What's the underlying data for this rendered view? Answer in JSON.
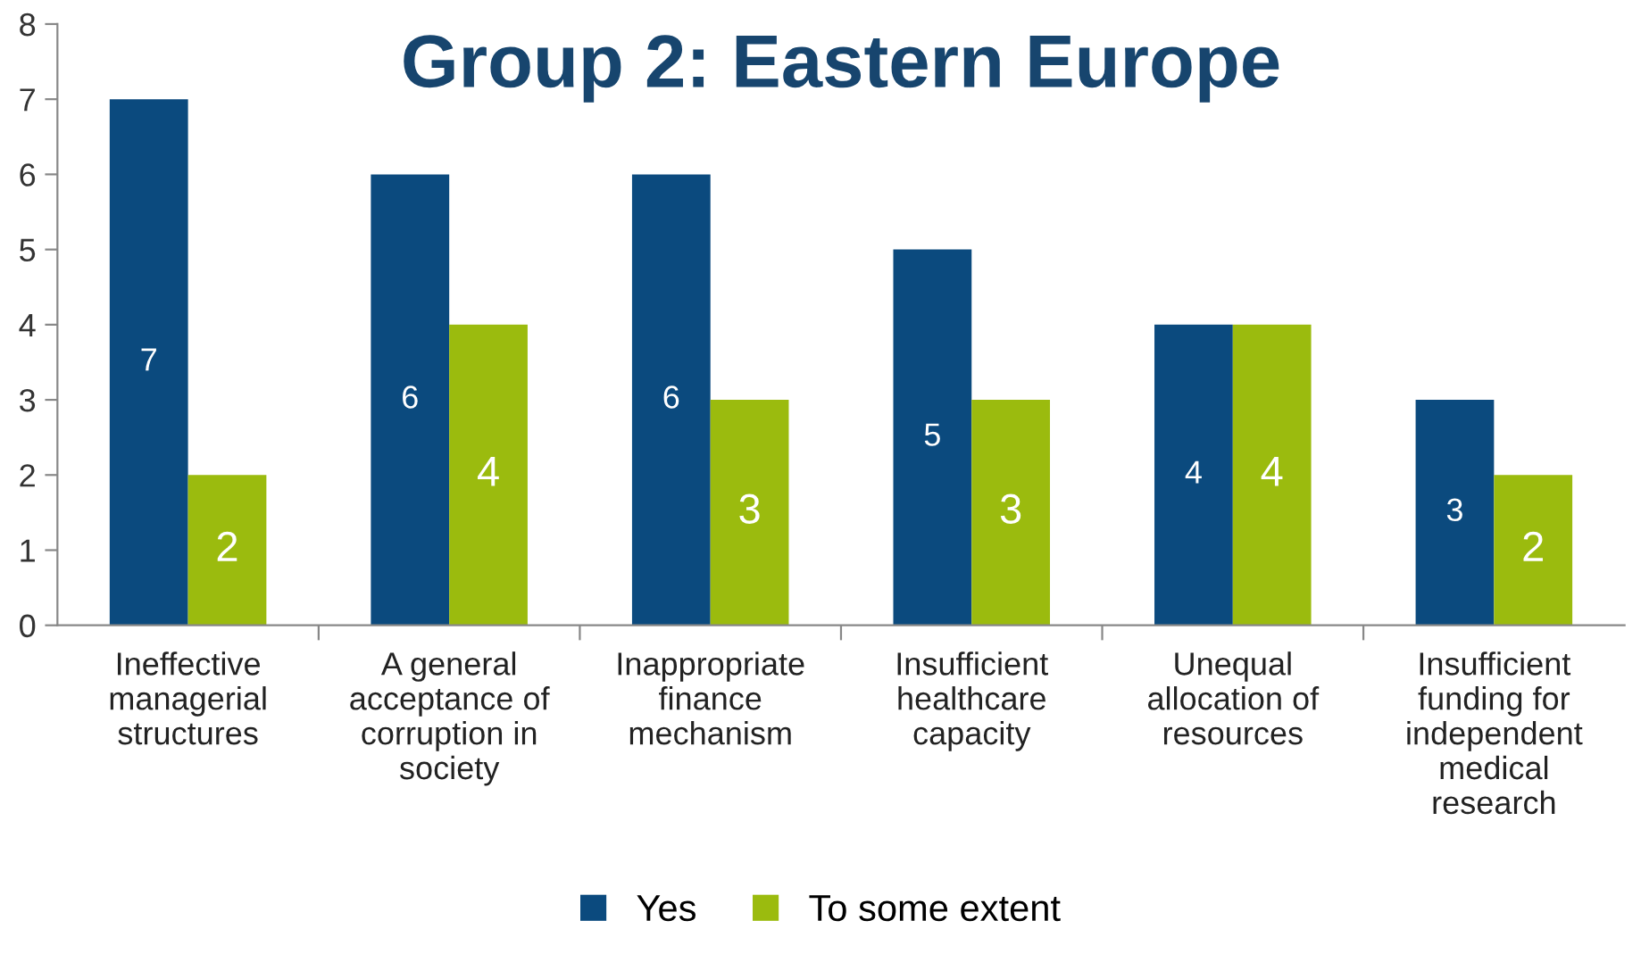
{
  "chart_data": {
    "type": "bar",
    "title": "Group 2: Eastern Europe",
    "categories": [
      "Ineffective\nmanagerial\nstructures",
      "A general\nacceptance of\ncorruption in\nsociety",
      "Inappropriate\nfinance\nmechanism",
      "Insufficient\nhealthcare\ncapacity",
      "Unequal\nallocation of\nresources",
      "Insufficient\nfunding for\nindependent\nmedical\nresearch"
    ],
    "series": [
      {
        "name": "Yes",
        "color": "#0b4a7e",
        "values": [
          7,
          6,
          6,
          5,
          4,
          3
        ]
      },
      {
        "name": "To some extent",
        "color": "#9bbb0e",
        "values": [
          2,
          4,
          3,
          3,
          4,
          2
        ]
      }
    ],
    "ylim": [
      0,
      8
    ],
    "yticks": [
      0,
      1,
      2,
      3,
      4,
      5,
      6,
      7,
      8
    ],
    "grid": false,
    "legend": "bottom",
    "data_labels": true
  }
}
